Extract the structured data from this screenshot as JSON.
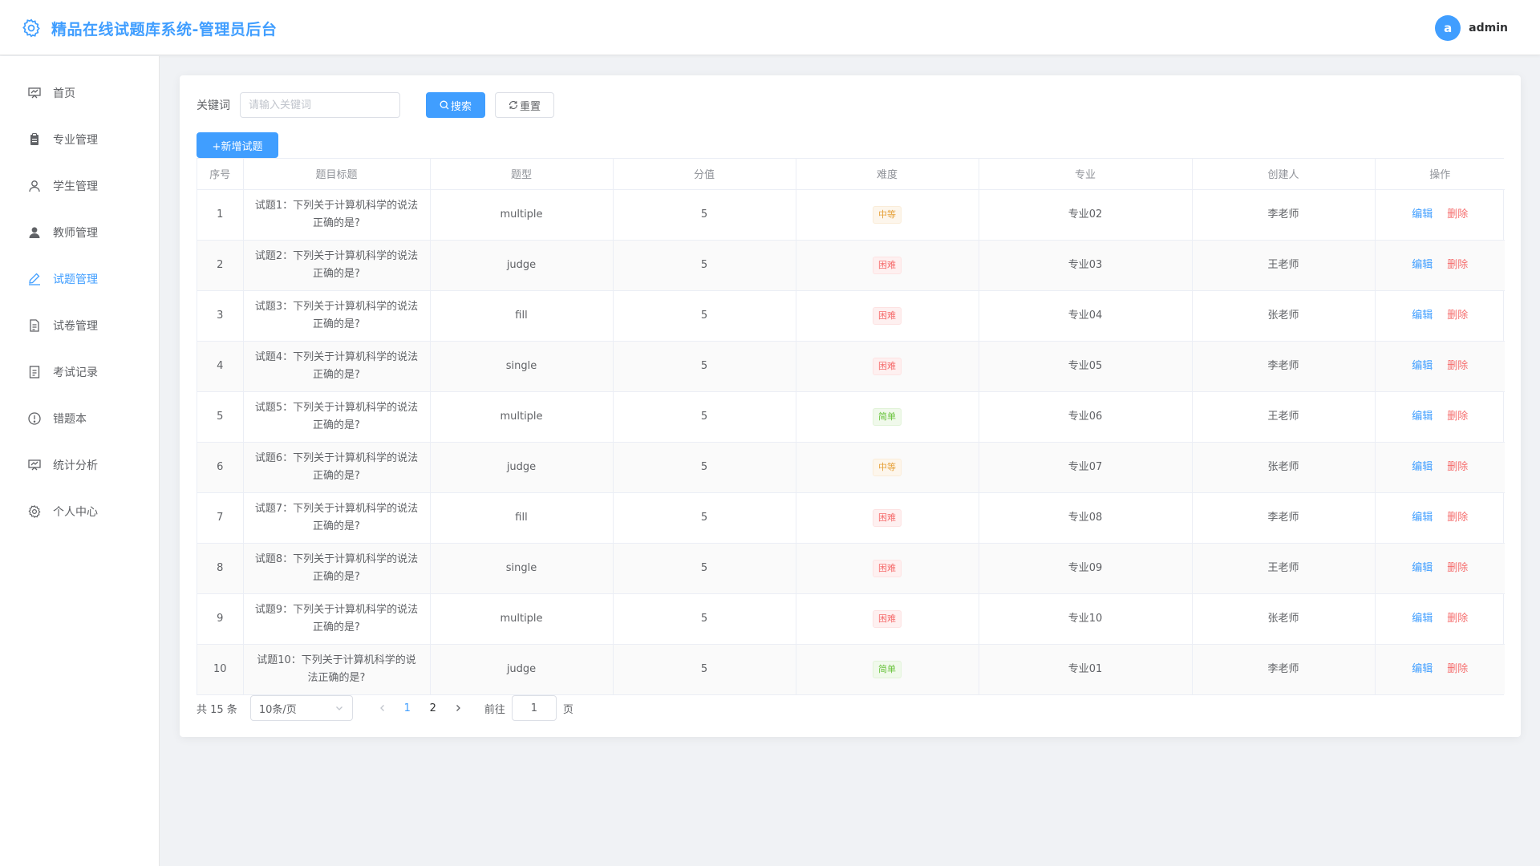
{
  "header": {
    "title": "精品在线试题库系统-管理员后台",
    "brand_icon": "gear-icon",
    "user": {
      "avatar_letter": "a",
      "name": "admin"
    }
  },
  "sidebar": {
    "items": [
      {
        "label": "首页",
        "icon": "home-icon",
        "active": false
      },
      {
        "label": "专业管理",
        "icon": "clipboard-icon",
        "active": false
      },
      {
        "label": "学生管理",
        "icon": "user-icon",
        "active": false
      },
      {
        "label": "教师管理",
        "icon": "user-solid-icon",
        "active": false
      },
      {
        "label": "试题管理",
        "icon": "edit-icon",
        "active": true
      },
      {
        "label": "试卷管理",
        "icon": "document-icon",
        "active": false
      },
      {
        "label": "考试记录",
        "icon": "tickets-icon",
        "active": false
      },
      {
        "label": "错题本",
        "icon": "warning-icon",
        "active": false
      },
      {
        "label": "统计分析",
        "icon": "data-board-icon",
        "active": false
      },
      {
        "label": "个人中心",
        "icon": "setting-icon",
        "active": false
      }
    ]
  },
  "search": {
    "label": "关键词",
    "placeholder": "请输入关键词",
    "value": "",
    "search_label": "搜索",
    "reset_label": "重置"
  },
  "toolbar": {
    "add_label": "+新增试题"
  },
  "table": {
    "columns": [
      "序号",
      "题目标题",
      "题型",
      "分值",
      "难度",
      "专业",
      "创建人",
      "操作"
    ],
    "edit_label": "编辑",
    "delete_label": "删除",
    "rows": [
      {
        "no": "1",
        "title": "试题1：下列关于计算机科学的说法正确的是?",
        "type": "multiple",
        "score": "5",
        "difficulty": "中等",
        "level": "medium",
        "major": "专业02",
        "creator": "李老师"
      },
      {
        "no": "2",
        "title": "试题2：下列关于计算机科学的说法正确的是?",
        "type": "judge",
        "score": "5",
        "difficulty": "困难",
        "level": "hard",
        "major": "专业03",
        "creator": "王老师"
      },
      {
        "no": "3",
        "title": "试题3：下列关于计算机科学的说法正确的是?",
        "type": "fill",
        "score": "5",
        "difficulty": "困难",
        "level": "hard",
        "major": "专业04",
        "creator": "张老师"
      },
      {
        "no": "4",
        "title": "试题4：下列关于计算机科学的说法正确的是?",
        "type": "single",
        "score": "5",
        "difficulty": "困难",
        "level": "hard",
        "major": "专业05",
        "creator": "李老师"
      },
      {
        "no": "5",
        "title": "试题5：下列关于计算机科学的说法正确的是?",
        "type": "multiple",
        "score": "5",
        "difficulty": "简单",
        "level": "easy",
        "major": "专业06",
        "creator": "王老师"
      },
      {
        "no": "6",
        "title": "试题6：下列关于计算机科学的说法正确的是?",
        "type": "judge",
        "score": "5",
        "difficulty": "中等",
        "level": "medium",
        "major": "专业07",
        "creator": "张老师"
      },
      {
        "no": "7",
        "title": "试题7：下列关于计算机科学的说法正确的是?",
        "type": "fill",
        "score": "5",
        "difficulty": "困难",
        "level": "hard",
        "major": "专业08",
        "creator": "李老师"
      },
      {
        "no": "8",
        "title": "试题8：下列关于计算机科学的说法正确的是?",
        "type": "single",
        "score": "5",
        "difficulty": "困难",
        "level": "hard",
        "major": "专业09",
        "creator": "王老师"
      },
      {
        "no": "9",
        "title": "试题9：下列关于计算机科学的说法正确的是?",
        "type": "multiple",
        "score": "5",
        "difficulty": "困难",
        "level": "hard",
        "major": "专业10",
        "creator": "张老师"
      },
      {
        "no": "10",
        "title": "试题10：下列关于计算机科学的说法正确的是?",
        "type": "judge",
        "score": "5",
        "difficulty": "简单",
        "level": "easy",
        "major": "专业01",
        "creator": "李老师"
      }
    ]
  },
  "pagination": {
    "total_text": "共 15 条",
    "page_size": "10条/页",
    "pages": [
      "1",
      "2"
    ],
    "current": "1",
    "goto_label": "前往",
    "goto_value": "1",
    "page_suffix": "页"
  },
  "colors": {
    "primary": "#409eff",
    "danger": "#f56c6c",
    "warning": "#e6a23c",
    "success": "#67c23a"
  }
}
